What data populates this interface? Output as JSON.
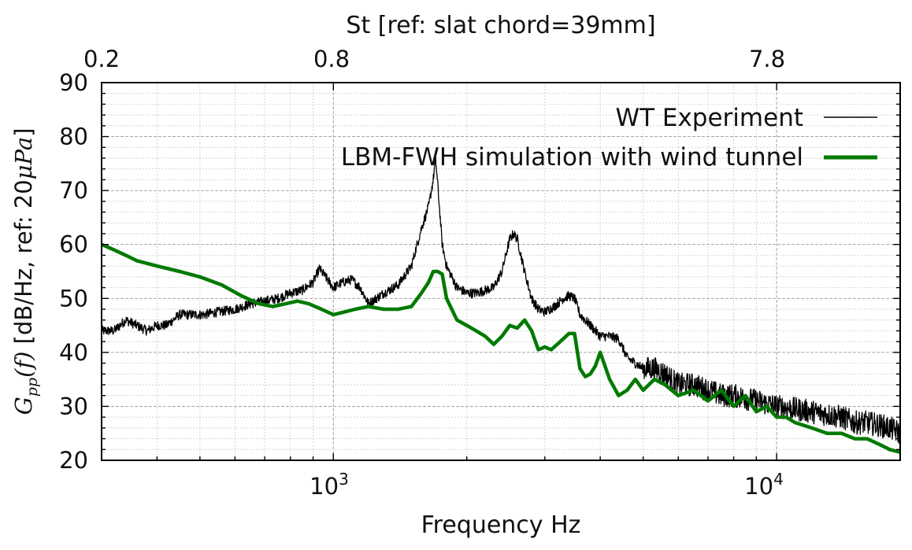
{
  "chart_data": {
    "type": "line",
    "x_scale": "log",
    "xlim": [
      300,
      19000
    ],
    "ylim": [
      20,
      90
    ],
    "grid": true,
    "legend_placement": "top-right",
    "xlabel": "Frequency Hz",
    "ylabel_prefix": "G",
    "ylabel_sub": "pp",
    "ylabel_fn": "(f)",
    "ylabel_units": " [dB/Hz, ref: 20",
    "ylabel_unit_math": "μPa",
    "ylabel_close": "]",
    "top_axis_label": "St [ref: slat chord=39mm]",
    "top_ticks": [
      {
        "label": "0.2",
        "freq": 300
      },
      {
        "label": "0.8",
        "freq": 1000
      },
      {
        "label": "7.8",
        "freq": 10000
      }
    ],
    "x_tick_labels": [
      {
        "base": "10",
        "exp": "3",
        "value": 1000
      },
      {
        "base": "10",
        "exp": "4",
        "value": 10000
      }
    ],
    "y_ticks": [
      20,
      30,
      40,
      50,
      60,
      70,
      80,
      90
    ],
    "series": [
      {
        "name": "WT Experiment",
        "color": "#000000",
        "style": "thin-noisy",
        "x": [
          300,
          320,
          340,
          360,
          380,
          400,
          420,
          450,
          480,
          510,
          550,
          600,
          650,
          700,
          750,
          800,
          850,
          900,
          930,
          960,
          1000,
          1050,
          1100,
          1150,
          1200,
          1300,
          1400,
          1500,
          1580,
          1640,
          1680,
          1700,
          1720,
          1760,
          1800,
          1900,
          2000,
          2100,
          2200,
          2300,
          2400,
          2500,
          2550,
          2600,
          2700,
          2800,
          2900,
          3000,
          3150,
          3300,
          3400,
          3500,
          3600,
          3800,
          4000,
          4200,
          4400,
          4600,
          4800,
          5000,
          5300,
          5600,
          6000,
          6500,
          7000,
          7500,
          8000,
          9000,
          10000,
          11000,
          12000,
          13000,
          14000,
          15000,
          16000,
          17000,
          18000,
          19000
        ],
        "y": [
          44,
          44,
          46,
          45,
          44,
          45,
          45,
          47,
          47,
          47,
          47.5,
          48,
          49,
          49.5,
          50,
          51,
          51.5,
          53,
          55.5,
          54,
          52,
          53,
          53.5,
          52,
          49,
          51,
          52.5,
          56,
          63,
          67,
          72,
          76,
          71,
          60,
          56,
          52,
          51,
          51,
          51.5,
          52,
          55,
          61,
          62,
          61,
          55,
          50,
          48,
          47.5,
          48.5,
          50,
          50.5,
          50,
          47,
          45,
          43,
          43,
          42.5,
          39,
          38,
          37,
          37,
          36,
          34,
          34,
          33,
          32,
          32,
          31,
          30,
          29.5,
          29,
          28.5,
          28,
          27,
          27,
          26.5,
          26,
          25
        ]
      },
      {
        "name": "LBM-FWH simulation with wind tunnel",
        "color": "#007a00",
        "style": "thick",
        "x": [
          300,
          320,
          340,
          360,
          400,
          450,
          500,
          560,
          620,
          680,
          730,
          780,
          830,
          880,
          940,
          1000,
          1060,
          1120,
          1200,
          1300,
          1400,
          1500,
          1580,
          1640,
          1680,
          1720,
          1760,
          1800,
          1900,
          2000,
          2100,
          2200,
          2300,
          2400,
          2500,
          2600,
          2700,
          2800,
          2900,
          3000,
          3100,
          3200,
          3300,
          3400,
          3500,
          3600,
          3700,
          3800,
          3900,
          4000,
          4200,
          4400,
          4600,
          4800,
          5000,
          5300,
          5600,
          6000,
          6500,
          7000,
          7500,
          8000,
          8500,
          9000,
          9500,
          10000,
          10500,
          11000,
          12000,
          13000,
          14000,
          15000,
          16000,
          17000,
          18000,
          19000
        ],
        "y": [
          60,
          59,
          58,
          57,
          56,
          55,
          54,
          52.5,
          50.5,
          49,
          48.5,
          49,
          49.5,
          49,
          48,
          47,
          47.5,
          48,
          48.5,
          48,
          48,
          48.5,
          51,
          53,
          55,
          55,
          54.5,
          50,
          46,
          45,
          44,
          43,
          41.5,
          43,
          45,
          44.5,
          46,
          44,
          40.5,
          41,
          40.5,
          41.5,
          42.5,
          43.5,
          43.5,
          37,
          35.5,
          36,
          37.5,
          40,
          35,
          32,
          33,
          35,
          33,
          35,
          34,
          32,
          33,
          31,
          33,
          30,
          32,
          29,
          30,
          28,
          28,
          27,
          26,
          25,
          25,
          24,
          24,
          23,
          22,
          21.5
        ]
      }
    ]
  }
}
